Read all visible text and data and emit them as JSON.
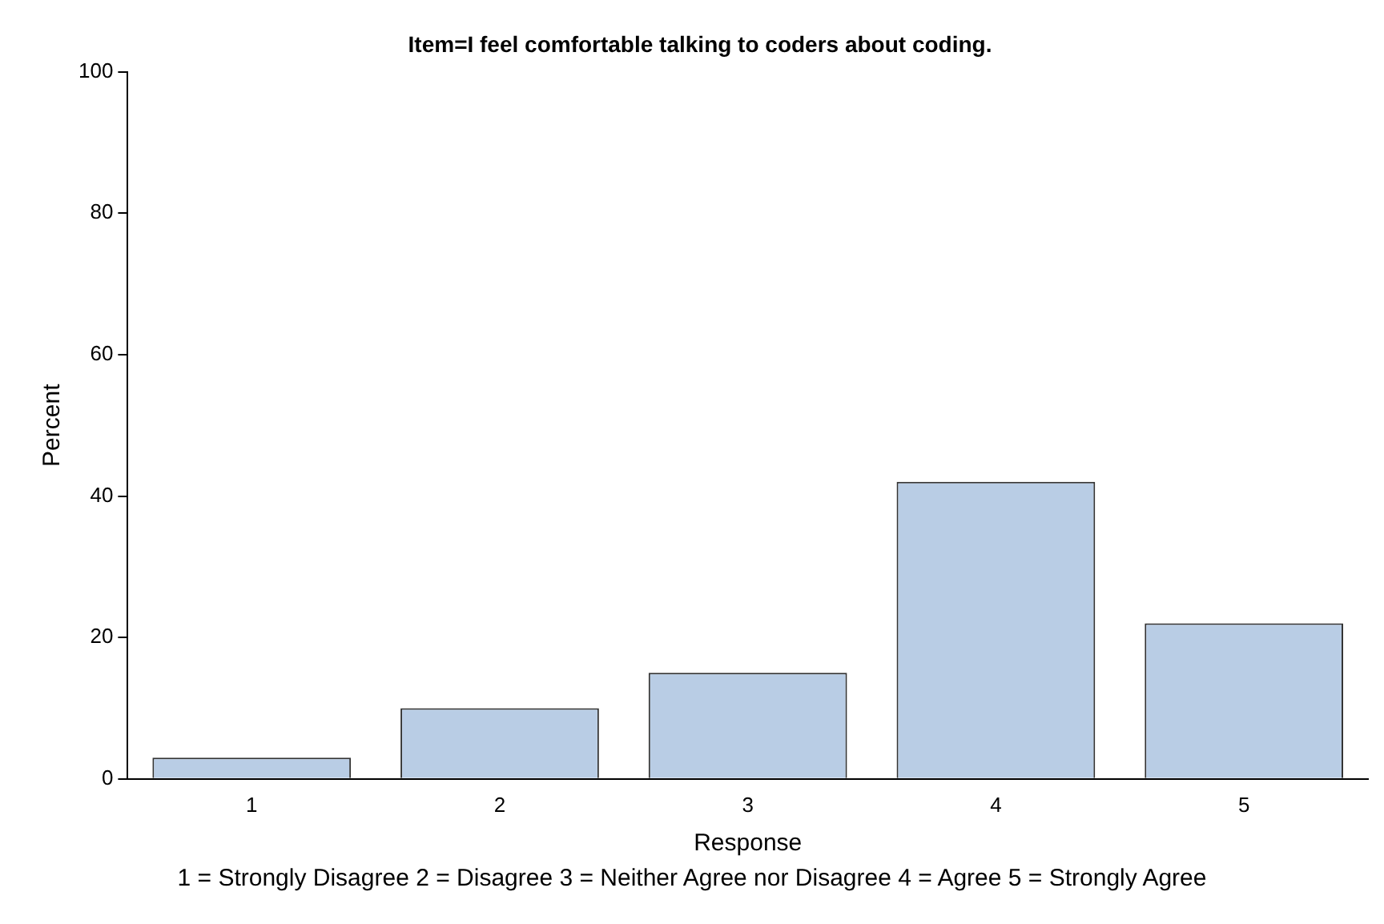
{
  "chart_data": {
    "type": "bar",
    "title": "Item=I feel comfortable talking to coders about coding.",
    "xlabel": "Response",
    "ylabel": "Percent",
    "categories": [
      "1",
      "2",
      "3",
      "4",
      "5"
    ],
    "values": [
      3,
      10,
      15,
      42,
      22
    ],
    "color": "#b9cde5",
    "ylim": [
      0,
      100
    ],
    "yticks": [
      0,
      20,
      40,
      60,
      80,
      100
    ],
    "grid": false,
    "legend": false,
    "annotations": [
      "1 = Strongly Disagree 2 = Disagree 3 = Neither Agree nor Disagree 4 = Agree 5 = Strongly Agree"
    ]
  }
}
